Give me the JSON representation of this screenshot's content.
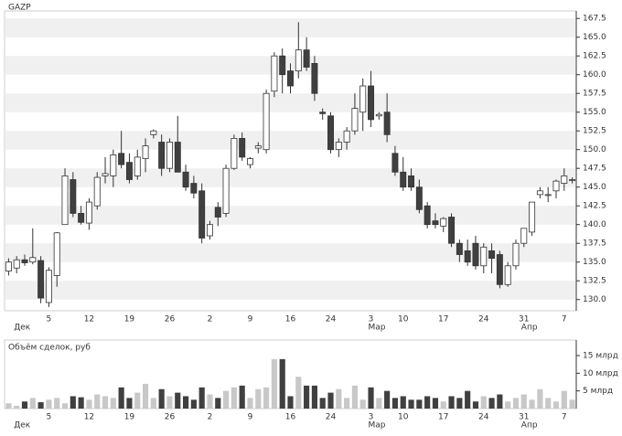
{
  "chart_data": [
    {
      "type": "candlestick",
      "title": "GAZP",
      "categories": [
        null,
        null,
        null,
        null,
        null,
        "5",
        null,
        null,
        null,
        null,
        "12",
        null,
        null,
        null,
        null,
        "19",
        null,
        null,
        null,
        null,
        "26",
        null,
        null,
        null,
        null,
        "2",
        null,
        null,
        null,
        null,
        "9",
        null,
        null,
        null,
        null,
        "16",
        null,
        null,
        null,
        null,
        "24",
        null,
        null,
        null,
        null,
        "3",
        null,
        null,
        null,
        "10",
        null,
        null,
        null,
        null,
        "17",
        null,
        null,
        null,
        null,
        "24",
        null,
        null,
        null,
        null,
        "31",
        null,
        null,
        null,
        null,
        "7",
        null
      ],
      "months": [
        null,
        "Дек",
        null,
        null,
        null,
        null,
        null,
        null,
        null,
        null,
        null,
        null,
        null,
        null,
        null,
        null,
        null,
        null,
        null,
        null,
        null,
        null,
        null,
        null,
        null,
        null,
        null,
        null,
        null,
        null,
        null,
        null,
        null,
        null,
        null,
        null,
        null,
        null,
        null,
        null,
        null,
        null,
        null,
        null,
        null,
        "Мар",
        null,
        null,
        null,
        null,
        null,
        null,
        null,
        null,
        null,
        null,
        null,
        null,
        null,
        null,
        null,
        null,
        null,
        null,
        "Апр",
        null,
        null,
        null,
        null,
        null,
        null
      ],
      "open": [
        133.8,
        134.2,
        135.3,
        135.0,
        135.2,
        129.6,
        133.2,
        140.0,
        146.0,
        141.5,
        140.2,
        142.5,
        146.5,
        146.5,
        149.5,
        148.3,
        146.5,
        148.8,
        152.0,
        151.0,
        147.5,
        151.0,
        147.0,
        145.5,
        144.5,
        138.5,
        142.3,
        141.5,
        147.5,
        151.5,
        148.0,
        150.2,
        150.0,
        157.8,
        162.5,
        160.5,
        160.5,
        163.3,
        161.5,
        155.0,
        154.5,
        150.0,
        151.0,
        152.5,
        155.0,
        158.5,
        154.5,
        155.0,
        149.5,
        147.0,
        146.5,
        145.0,
        142.5,
        140.5,
        139.8,
        141.0,
        137.5,
        136.5,
        137.5,
        134.5,
        136.5,
        136.0,
        132.0,
        134.5,
        137.5,
        139.0,
        144.0,
        144.0,
        144.5,
        145.5,
        146.0
      ],
      "high": [
        135.5,
        135.8,
        136.0,
        139.5,
        135.8,
        134.3,
        139.0,
        147.5,
        147.0,
        142.5,
        143.5,
        147.0,
        149.0,
        150.0,
        152.5,
        149.5,
        150.0,
        151.5,
        152.7,
        152.0,
        151.5,
        154.5,
        148.0,
        146.5,
        145.5,
        140.5,
        143.0,
        148.0,
        152.0,
        152.3,
        149.0,
        151.0,
        158.0,
        163.0,
        163.5,
        161.5,
        167.0,
        165.0,
        162.5,
        155.5,
        155.0,
        151.5,
        153.0,
        157.5,
        159.5,
        160.5,
        155.0,
        157.5,
        150.5,
        149.0,
        147.5,
        146.0,
        143.0,
        141.5,
        141.0,
        141.5,
        138.0,
        138.0,
        138.5,
        137.5,
        137.5,
        136.5,
        135.0,
        138.0,
        139.5,
        143.0,
        145.0,
        145.0,
        146.0,
        147.5,
        146.3
      ],
      "low": [
        133.2,
        133.5,
        134.5,
        134.7,
        129.5,
        129.0,
        131.7,
        140.0,
        141.0,
        140.0,
        139.3,
        142.0,
        145.5,
        145.0,
        147.5,
        145.5,
        146.0,
        147.0,
        151.5,
        146.5,
        147.0,
        147.0,
        144.5,
        143.5,
        137.5,
        138.0,
        139.8,
        141.0,
        147.3,
        148.5,
        147.5,
        149.5,
        149.5,
        157.0,
        157.5,
        157.5,
        159.5,
        160.5,
        156.5,
        154.0,
        149.5,
        149.0,
        150.0,
        152.0,
        152.5,
        153.0,
        154.0,
        151.0,
        146.5,
        144.5,
        144.5,
        141.5,
        139.5,
        139.5,
        139.0,
        137.0,
        135.0,
        134.5,
        134.0,
        133.5,
        133.5,
        131.5,
        131.7,
        134.0,
        137.0,
        138.5,
        143.5,
        143.0,
        143.5,
        144.5,
        145.5
      ],
      "close": [
        135.0,
        135.3,
        134.9,
        135.6,
        130.2,
        133.9,
        138.9,
        146.5,
        141.5,
        140.3,
        143.0,
        146.3,
        146.8,
        149.3,
        148.0,
        146.0,
        149.0,
        150.5,
        152.5,
        147.5,
        151.0,
        147.0,
        145.0,
        144.2,
        138.2,
        140.0,
        141.0,
        147.5,
        151.5,
        149.0,
        148.8,
        150.5,
        157.5,
        162.5,
        160.0,
        158.5,
        163.3,
        161.0,
        157.5,
        154.8,
        150.0,
        151.0,
        152.5,
        155.5,
        158.5,
        154.0,
        154.7,
        152.0,
        147.0,
        145.0,
        145.0,
        142.0,
        140.0,
        140.0,
        140.8,
        137.5,
        136.0,
        135.0,
        134.5,
        137.0,
        135.5,
        132.0,
        134.5,
        137.5,
        139.5,
        143.0,
        144.5,
        144.0,
        145.8,
        146.5,
        146.0
      ],
      "up_color": "#ffffff",
      "down_color": "#404040",
      "edge_color": "#333333",
      "ylim": [
        128.5,
        168.5
      ],
      "yticks": [
        {
          "value": 130,
          "label": "130.0"
        },
        132.5,
        {
          "value": 135,
          "label": "135.0"
        },
        137.5,
        {
          "value": 140,
          "label": "140.0"
        },
        142.5,
        {
          "value": 145,
          "label": "145.0"
        },
        147.5,
        {
          "value": 150,
          "label": "150.0"
        },
        152.5,
        {
          "value": 155,
          "label": "155.0"
        },
        157.5,
        {
          "value": 160,
          "label": "160.0"
        },
        162.5,
        {
          "value": 165,
          "label": "165.0"
        },
        167.5
      ],
      "grid": true
    },
    {
      "type": "volume",
      "title": "Объём сделок, руб",
      "values": [
        1.5,
        0.8,
        2,
        3,
        1.8,
        2.5,
        3,
        1.5,
        3.5,
        3.2,
        2.5,
        4,
        3.5,
        3,
        6,
        3,
        4.5,
        7,
        3,
        5.5,
        3.5,
        4.5,
        3.5,
        2.5,
        6,
        4,
        3,
        5,
        6,
        6.5,
        3,
        5.5,
        6,
        14,
        14,
        3.5,
        9,
        6.5,
        6.5,
        3,
        4.5,
        5.5,
        3,
        6.5,
        2.5,
        6,
        3,
        5,
        3,
        3.5,
        2.5,
        2.5,
        3.5,
        3,
        2,
        3.5,
        3,
        5,
        2,
        3.5,
        3,
        4,
        2,
        3,
        4,
        2.5,
        5.5,
        3,
        2,
        5,
        2.5
      ],
      "up_color": "#c8c8c8",
      "down_color": "#404040",
      "ylim": [
        0,
        19.4
      ],
      "yticks": [
        {
          "value": 5,
          "label": "5 млрд"
        },
        {
          "value": 10,
          "label": "10 млрд"
        },
        {
          "value": 15,
          "label": "15 млрд"
        }
      ]
    }
  ]
}
